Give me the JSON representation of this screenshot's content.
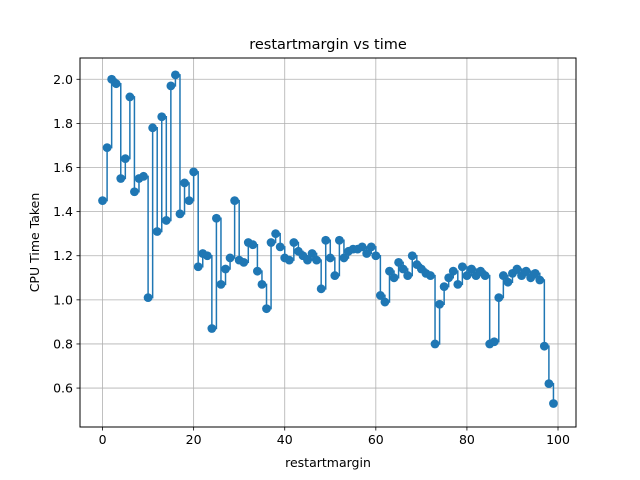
{
  "chart_data": {
    "type": "line",
    "style": "step-post with markers",
    "title": "restartmargin vs time",
    "xlabel": "restartmargin",
    "ylabel": "CPU Time Taken",
    "xlim": [
      -4.95,
      103.95
    ],
    "ylim": [
      0.4235,
      2.0965
    ],
    "xticks": [
      0,
      20,
      40,
      60,
      80,
      100
    ],
    "yticks": [
      0.6,
      0.8,
      1.0,
      1.2,
      1.4,
      1.6,
      1.8,
      2.0
    ],
    "xtick_labels": [
      "0",
      "20",
      "40",
      "60",
      "80",
      "100"
    ],
    "ytick_labels": [
      "0.6",
      "0.8",
      "1.0",
      "1.2",
      "1.4",
      "1.6",
      "1.8",
      "2.0"
    ],
    "grid": true,
    "line_color": "#1f77b4",
    "marker_color": "#1f77b4",
    "series": [
      {
        "x": [
          0,
          1,
          2,
          3,
          4,
          5,
          6,
          7,
          8,
          9,
          10,
          11,
          12,
          13,
          14,
          15,
          16,
          17,
          18,
          19,
          20,
          21,
          22,
          23,
          24,
          25,
          26,
          27,
          28,
          29,
          30,
          31,
          32,
          33,
          34,
          35,
          36,
          37,
          38,
          39,
          40,
          41,
          42,
          43,
          44,
          45,
          46,
          47,
          48,
          49,
          50,
          51,
          52,
          53,
          54,
          55,
          56,
          57,
          58,
          59,
          60,
          61,
          62,
          63,
          64,
          65,
          66,
          67,
          68,
          69,
          70,
          71,
          72,
          73,
          74,
          75,
          76,
          77,
          78,
          79,
          80,
          81,
          82,
          83,
          84,
          85,
          86,
          87,
          88,
          89,
          90,
          91,
          92,
          93,
          94,
          95,
          96,
          97,
          98,
          99
        ],
        "values": [
          1.45,
          1.69,
          2.0,
          1.98,
          1.55,
          1.64,
          1.92,
          1.49,
          1.55,
          1.56,
          1.01,
          1.78,
          1.31,
          1.83,
          1.36,
          1.97,
          2.02,
          1.39,
          1.53,
          1.45,
          1.58,
          1.15,
          1.21,
          1.2,
          0.87,
          1.37,
          1.07,
          1.14,
          1.19,
          1.45,
          1.18,
          1.17,
          1.26,
          1.25,
          1.13,
          1.07,
          0.96,
          1.26,
          1.3,
          1.24,
          1.19,
          1.18,
          1.26,
          1.22,
          1.2,
          1.18,
          1.21,
          1.18,
          1.05,
          1.27,
          1.19,
          1.11,
          1.27,
          1.19,
          1.22,
          1.23,
          1.23,
          1.24,
          1.21,
          1.24,
          1.2,
          1.02,
          0.99,
          1.13,
          1.1,
          1.17,
          1.14,
          1.11,
          1.2,
          1.16,
          1.14,
          1.12,
          1.11,
          0.8,
          0.98,
          1.06,
          1.1,
          1.13,
          1.07,
          1.15,
          1.11,
          1.14,
          1.11,
          1.13,
          1.11,
          0.8,
          0.81,
          1.01,
          1.11,
          1.08,
          1.12,
          1.14,
          1.11,
          1.13,
          1.1,
          1.12,
          1.09,
          0.79,
          0.62,
          0.53
        ]
      }
    ]
  }
}
